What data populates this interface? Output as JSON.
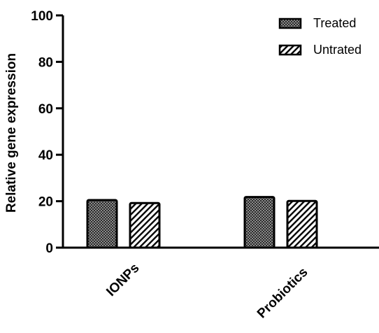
{
  "chart_data": {
    "type": "bar",
    "categories": [
      "IONPs",
      "Probiotics"
    ],
    "series": [
      {
        "name": "Treated",
        "values": [
          20.5,
          21.8
        ],
        "pattern": "checker"
      },
      {
        "name": "Untrated",
        "values": [
          19.2,
          20.1
        ],
        "pattern": "hatch"
      }
    ],
    "xlabel": "",
    "ylabel": "Relative gene expression",
    "ylim": [
      0,
      100
    ],
    "yticks": [
      "0",
      "20",
      "40",
      "60",
      "80",
      "100"
    ],
    "legend_position": "top-right",
    "grid": false
  }
}
